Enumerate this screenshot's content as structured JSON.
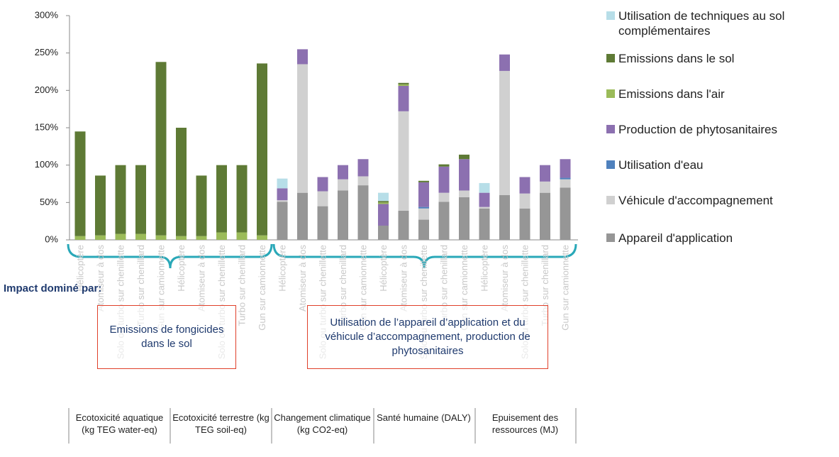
{
  "chart_data": {
    "type": "stacked_bar",
    "categories": [
      "Hélicoptère",
      "Atomiseur à dos",
      "Solo ou turbo sur chenillette",
      "Turbo sur chenillard",
      "Gun sur camionnette",
      "Hélicoptère",
      "Atomiseur à dos",
      "Solo ou turbo sur chenillette",
      "Turbo sur chenillard",
      "Gun sur camionnette",
      "Hélicoptère",
      "Atomiseur à dos",
      "Solo ou turbo sur chenillette",
      "Turbo sur chenillard",
      "Gun sur camionnette",
      "Hélicoptère",
      "Atomiseur à dos",
      "Solo ou turbo sur chenillette",
      "Turbo sur chenillard",
      "Gun sur camionnette",
      "Hélicoptère",
      "Atomiseur à dos",
      "Solo ou turbo sur chenillette",
      "Turbo sur chenillard",
      "Gun sur camionnette"
    ],
    "groups": [
      "Ecotoxicité aquatique (kg TEG water-eq)",
      "Ecotoxicité terrestre (kg TEG soil-eq)",
      "Changement climatique (kg CO2-eq)",
      "Santé humaine (DALY)",
      "Epuisement des ressources (MJ)"
    ],
    "series": [
      {
        "name": "Appareil d'application",
        "color": "#969696",
        "values": [
          0,
          0,
          0,
          0,
          0,
          0,
          0,
          0,
          0,
          0,
          51,
          63,
          45,
          66,
          73,
          19,
          39,
          27,
          51,
          57,
          42,
          60,
          42,
          63,
          70
        ]
      },
      {
        "name": "Véhicule d'accompagnement",
        "color": "#d0d0d0",
        "values": [
          0,
          0,
          0,
          0,
          0,
          0,
          0,
          0,
          0,
          0,
          2,
          172,
          20,
          15,
          12,
          0,
          133,
          15,
          12,
          9,
          2,
          166,
          20,
          15,
          11
        ]
      },
      {
        "name": "Utilisation d'eau",
        "color": "#4f81bd",
        "values": [
          0,
          0,
          0,
          0,
          0,
          0,
          0,
          0,
          0,
          0,
          0,
          0,
          0,
          0,
          0,
          0,
          0,
          2,
          0,
          0,
          0,
          0,
          0,
          0,
          2
        ]
      },
      {
        "name": "Production de phytosanitaires",
        "color": "#8c70b0",
        "values": [
          0,
          0,
          0,
          0,
          0,
          0,
          0,
          0,
          0,
          0,
          16,
          20,
          19,
          19,
          23,
          29,
          34,
          33,
          35,
          42,
          19,
          22,
          22,
          22,
          25
        ]
      },
      {
        "name": "Emissions dans l'air",
        "color": "#9bbb59",
        "values": [
          5,
          6,
          8,
          8,
          6,
          5,
          5,
          10,
          10,
          6,
          0,
          0,
          0,
          0,
          0,
          2,
          2,
          0,
          0,
          0,
          0,
          0,
          0,
          0,
          0
        ]
      },
      {
        "name": "Emissions dans le sol",
        "color": "#5e7a35",
        "values": [
          140,
          80,
          92,
          92,
          232,
          145,
          81,
          90,
          90,
          230,
          0,
          0,
          0,
          0,
          0,
          2,
          2,
          2,
          3,
          6,
          0,
          0,
          0,
          0,
          0
        ]
      },
      {
        "name": "Utilisation de techniques au sol complémentaires",
        "color": "#b7dee8",
        "values": [
          0,
          0,
          0,
          0,
          0,
          0,
          0,
          0,
          0,
          0,
          13,
          0,
          0,
          0,
          0,
          11,
          0,
          0,
          0,
          0,
          13,
          0,
          0,
          0,
          0
        ]
      }
    ],
    "ylim": [
      0,
      300
    ],
    "yticks": [
      {
        "value": 0,
        "label": "0%"
      },
      {
        "value": 50,
        "label": "50%"
      },
      {
        "value": 100,
        "label": "100%"
      },
      {
        "value": 150,
        "label": "150%"
      },
      {
        "value": 200,
        "label": "200%"
      },
      {
        "value": 250,
        "label": "250%"
      },
      {
        "value": 300,
        "label": "300%"
      }
    ],
    "annotations": [
      "Impact dominé par:",
      "Emissions de fongicides dans le sol",
      "Utilisation de l’appareil d’application et du véhicule d’accompagnement, production de phytosanitaires"
    ]
  }
}
